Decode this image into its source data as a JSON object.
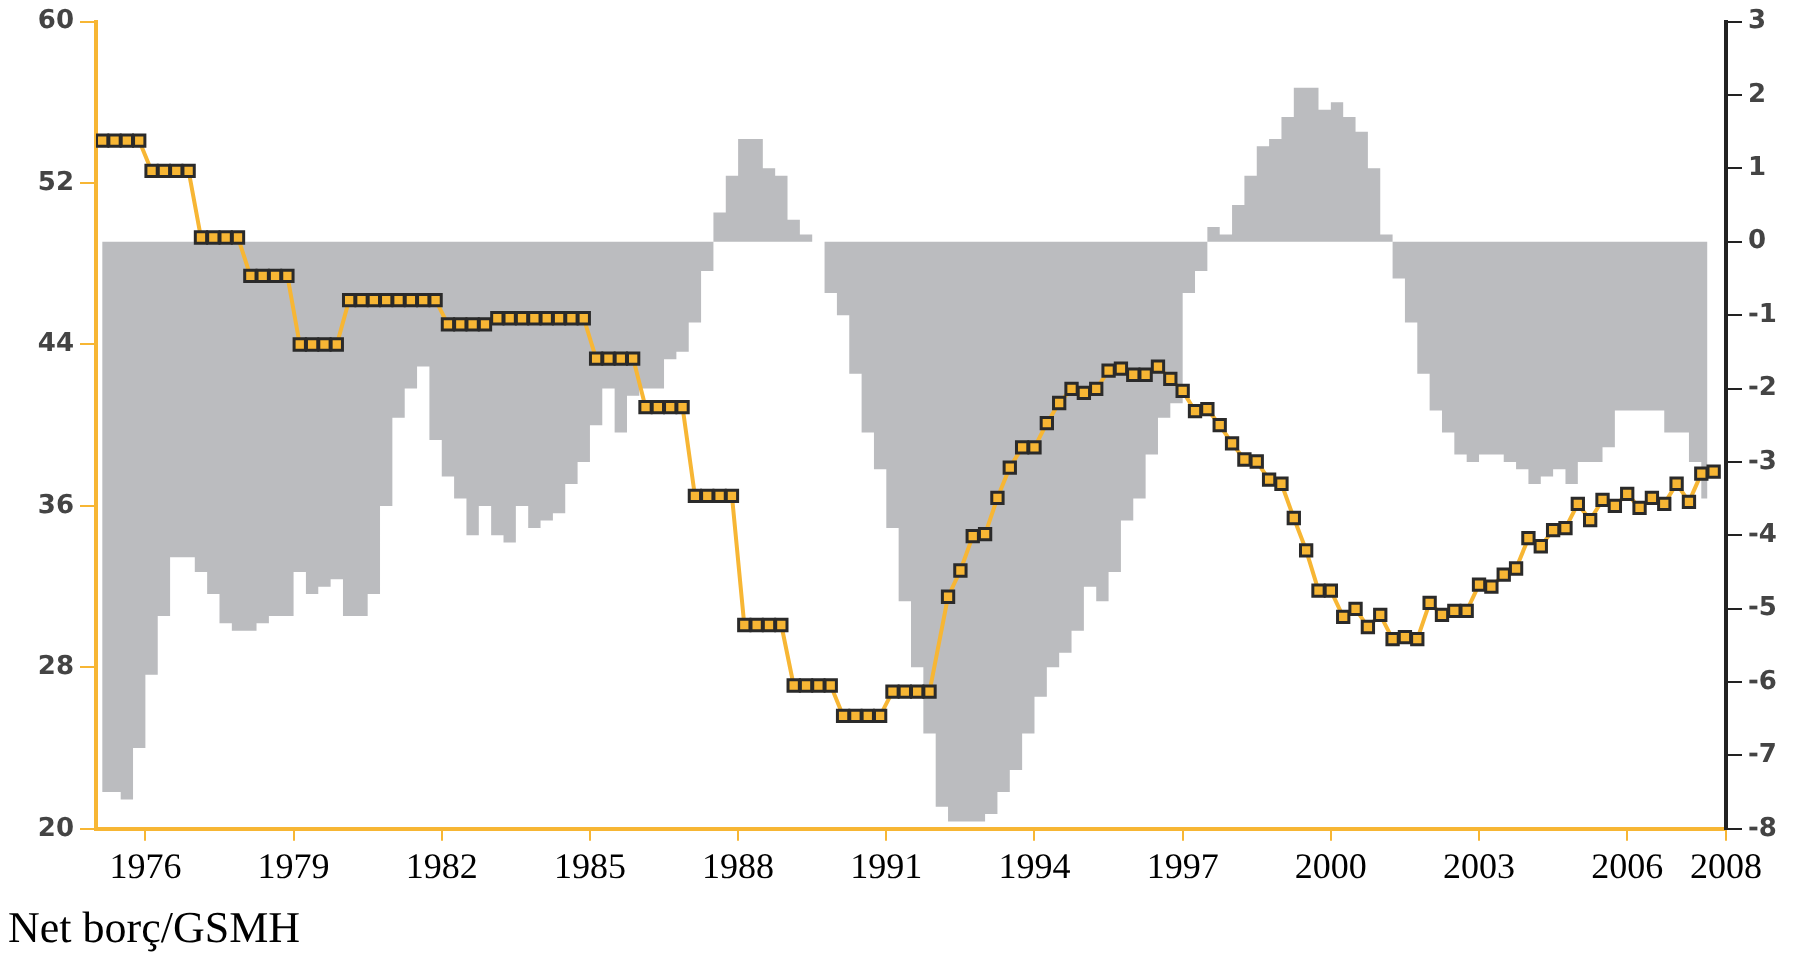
{
  "chart_data": {
    "type": "line",
    "xlim": [
      1975,
      2008
    ],
    "xticks": [
      1976,
      1979,
      1982,
      1985,
      1988,
      1991,
      1994,
      1997,
      2000,
      2003,
      2006,
      2008
    ],
    "ylim": [
      20,
      60
    ],
    "yticks": [
      20,
      28,
      36,
      44,
      52,
      60
    ],
    "y2lim": [
      -8,
      3
    ],
    "y2ticks": [
      -8,
      -7,
      -6,
      -5,
      -4,
      -3,
      -2,
      -1,
      0,
      1,
      2,
      3
    ],
    "legend": false,
    "grid": false,
    "annotations": [
      "Net borç/GSMH"
    ],
    "series": [
      {
        "type": "area",
        "axis": "y2",
        "color": "#bbbcbf",
        "x": [
          1975.125,
          1975.375,
          1975.625,
          1975.875,
          1976.125,
          1976.375,
          1976.625,
          1976.875,
          1977.125,
          1977.375,
          1977.625,
          1977.875,
          1978.125,
          1978.375,
          1978.625,
          1978.875,
          1979.125,
          1979.375,
          1979.625,
          1979.875,
          1980.125,
          1980.375,
          1980.625,
          1980.875,
          1981.125,
          1981.375,
          1981.625,
          1981.875,
          1982.125,
          1982.375,
          1982.625,
          1982.875,
          1983.125,
          1983.375,
          1983.625,
          1983.875,
          1984.125,
          1984.375,
          1984.625,
          1984.875,
          1985.125,
          1985.375,
          1985.625,
          1985.875,
          1986.125,
          1986.375,
          1986.625,
          1986.875,
          1987.125,
          1987.375,
          1987.625,
          1987.875,
          1988.125,
          1988.375,
          1988.625,
          1988.875,
          1989.125,
          1989.375,
          1989.625,
          1989.875,
          1990.125,
          1990.375,
          1990.625,
          1990.875,
          1991.125,
          1991.375,
          1991.625,
          1991.875,
          1992.125,
          1992.375,
          1992.625,
          1992.875,
          1993.125,
          1993.375,
          1993.625,
          1993.875,
          1994.125,
          1994.375,
          1994.625,
          1994.875,
          1995.125,
          1995.375,
          1995.625,
          1995.875,
          1996.125,
          1996.375,
          1996.625,
          1996.875,
          1997.125,
          1997.375,
          1997.625,
          1997.875,
          1998.125,
          1998.375,
          1998.625,
          1998.875,
          1999.125,
          1999.375,
          1999.625,
          1999.875,
          2000.125,
          2000.375,
          2000.625,
          2000.875,
          2001.125,
          2001.375,
          2001.625,
          2001.875,
          2002.125,
          2002.375,
          2002.625,
          2002.875,
          2003.125,
          2003.375,
          2003.625,
          2003.875,
          2004.125,
          2004.375,
          2004.625,
          2004.875,
          2005.125,
          2005.375,
          2005.625,
          2005.875,
          2006.125,
          2006.375,
          2006.625,
          2006.875,
          2007.125,
          2007.375,
          2007.625
        ],
        "values": [
          -7.5,
          -7.5,
          -7.6,
          -6.9,
          -5.9,
          -5.1,
          -4.3,
          -4.3,
          -4.5,
          -4.8,
          -5.2,
          -5.3,
          -5.3,
          -5.2,
          -5.1,
          -5.1,
          -4.5,
          -4.8,
          -4.7,
          -4.6,
          -5.1,
          -5.1,
          -4.8,
          -3.6,
          -2.4,
          -2.0,
          -1.7,
          -2.7,
          -3.2,
          -3.5,
          -4.0,
          -3.6,
          -4.0,
          -4.1,
          -3.6,
          -3.9,
          -3.8,
          -3.7,
          -3.3,
          -3.0,
          -2.5,
          -2.0,
          -2.6,
          -2.1,
          -2.0,
          -2.0,
          -1.6,
          -1.5,
          -1.1,
          -0.4,
          0.4,
          0.9,
          1.4,
          1.4,
          1.0,
          0.9,
          0.3,
          0.1,
          0,
          -0.7,
          -1.0,
          -1.8,
          -2.6,
          -3.1,
          -3.9,
          -4.9,
          -5.8,
          -6.7,
          -7.7,
          -7.9,
          -7.9,
          -7.9,
          -7.8,
          -7.5,
          -7.2,
          -6.7,
          -6.2,
          -5.8,
          -5.6,
          -5.3,
          -4.7,
          -4.9,
          -4.5,
          -3.8,
          -3.5,
          -2.9,
          -2.4,
          -2.2,
          -0.7,
          -0.4,
          0.2,
          0.1,
          0.5,
          0.9,
          1.3,
          1.4,
          1.7,
          2.1,
          2.1,
          1.8,
          1.9,
          1.7,
          1.5,
          1.0,
          0.1,
          -0.5,
          -1.1,
          -1.8,
          -2.3,
          -2.6,
          -2.9,
          -3.0,
          -2.9,
          -2.9,
          -3.0,
          -3.1,
          -3.3,
          -3.2,
          -3.1,
          -3.3,
          -3.0,
          -3.0,
          -2.8,
          -2.3,
          -2.3,
          -2.3,
          -2.3,
          -2.6,
          -2.6,
          -3.0,
          -3.5
        ]
      },
      {
        "color": "#f7b634",
        "marker": "square",
        "x": [
          1975.125,
          1975.375,
          1975.625,
          1975.875,
          1976.125,
          1976.375,
          1976.625,
          1976.875,
          1977.125,
          1977.375,
          1977.625,
          1977.875,
          1978.125,
          1978.375,
          1978.625,
          1978.875,
          1979.125,
          1979.375,
          1979.625,
          1979.875,
          1980.125,
          1980.375,
          1980.625,
          1980.875,
          1981.125,
          1981.375,
          1981.625,
          1981.875,
          1982.125,
          1982.375,
          1982.625,
          1982.875,
          1983.125,
          1983.375,
          1983.625,
          1983.875,
          1984.125,
          1984.375,
          1984.625,
          1984.875,
          1985.125,
          1985.375,
          1985.625,
          1985.875,
          1986.125,
          1986.375,
          1986.625,
          1986.875,
          1987.125,
          1987.375,
          1987.625,
          1987.875,
          1988.125,
          1988.375,
          1988.625,
          1988.875,
          1989.125,
          1989.375,
          1989.625,
          1989.875,
          1990.125,
          1990.375,
          1990.625,
          1990.875,
          1991.125,
          1991.375,
          1991.625,
          1991.875,
          1992.25,
          1992.5,
          1992.75,
          1993,
          1993.25,
          1993.5,
          1993.75,
          1994,
          1994.25,
          1994.5,
          1994.75,
          1995,
          1995.25,
          1995.5,
          1995.75,
          1996,
          1996.25,
          1996.5,
          1996.75,
          1997,
          1997.25,
          1997.5,
          1997.75,
          1998,
          1998.25,
          1998.5,
          1998.75,
          1999,
          1999.25,
          1999.5,
          1999.75,
          2000,
          2000.25,
          2000.5,
          2000.75,
          2001,
          2001.25,
          2001.5,
          2001.75,
          2002,
          2002.25,
          2002.5,
          2002.75,
          2003,
          2003.25,
          2003.5,
          2003.75,
          2004,
          2004.25,
          2004.5,
          2004.75,
          2005,
          2005.25,
          2005.5,
          2005.75,
          2006,
          2006.25,
          2006.5,
          2006.75,
          2007,
          2007.25,
          2007.5,
          2007.75
        ],
        "values": [
          54.1,
          54.1,
          54.1,
          54.1,
          52.6,
          52.6,
          52.6,
          52.6,
          49.3,
          49.3,
          49.3,
          49.3,
          47.4,
          47.4,
          47.4,
          47.4,
          44.0,
          44.0,
          44.0,
          44.0,
          46.2,
          46.2,
          46.2,
          46.2,
          46.2,
          46.2,
          46.2,
          46.2,
          45.0,
          45.0,
          45.0,
          45.0,
          45.3,
          45.3,
          45.3,
          45.3,
          45.3,
          45.3,
          45.3,
          45.3,
          43.3,
          43.3,
          43.3,
          43.3,
          40.9,
          40.9,
          40.9,
          40.9,
          36.5,
          36.5,
          36.5,
          36.5,
          30.1,
          30.1,
          30.1,
          30.1,
          27.1,
          27.1,
          27.1,
          27.1,
          25.6,
          25.6,
          25.6,
          25.6,
          26.8,
          26.8,
          26.8,
          26.8,
          31.5,
          32.8,
          34.5,
          34.6,
          36.4,
          37.9,
          38.9,
          38.9,
          40.1,
          41.1,
          41.8,
          41.6,
          41.8,
          42.7,
          42.8,
          42.5,
          42.5,
          42.9,
          42.3,
          41.7,
          40.7,
          40.8,
          40.0,
          39.1,
          38.3,
          38.2,
          37.3,
          37.1,
          35.4,
          33.8,
          31.8,
          31.8,
          30.5,
          30.9,
          30.0,
          30.6,
          29.4,
          29.5,
          29.4,
          31.2,
          30.6,
          30.8,
          30.8,
          32.1,
          32.0,
          32.6,
          32.9,
          34.4,
          34.0,
          34.8,
          34.9,
          36.1,
          35.3,
          36.3,
          36.0,
          36.6,
          35.9,
          36.4,
          36.1,
          37.1,
          36.2,
          37.6,
          37.7
        ]
      }
    ]
  }
}
